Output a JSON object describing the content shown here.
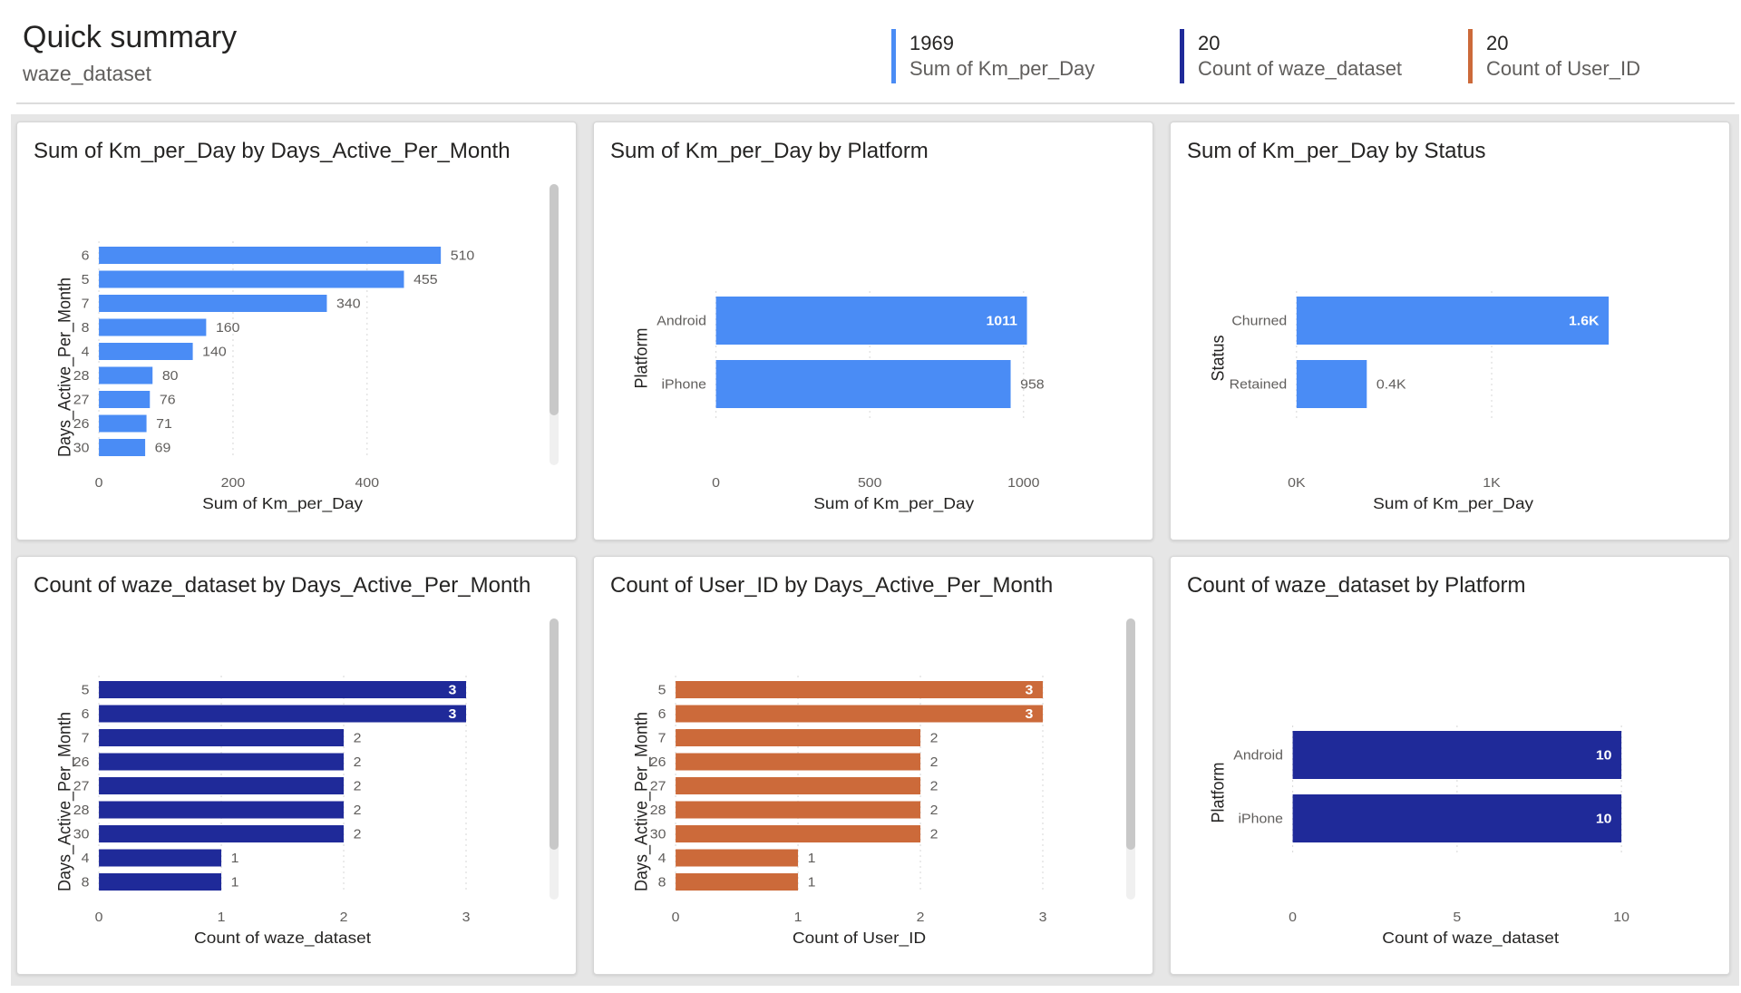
{
  "header": {
    "title": "Quick summary",
    "subtitle": "waze_dataset",
    "kpis": [
      {
        "value": "1969",
        "label": "Sum of Km_per_Day",
        "color": "#4a8cf5"
      },
      {
        "value": "20",
        "label": "Count of waze_dataset",
        "color": "#1f2a99"
      },
      {
        "value": "20",
        "label": "Count of User_ID",
        "color": "#cc6a3a"
      }
    ]
  },
  "colors": {
    "light_blue": "#4a8cf5",
    "dark_blue": "#1f2a99",
    "orange": "#cc6a3a"
  },
  "chart_data": [
    {
      "type": "bar",
      "orientation": "horizontal",
      "title": "Sum of Km_per_Day by Days_Active_Per_Month",
      "ylabel": "Days_Active_Per_Month",
      "xlabel": "Sum of Km_per_Day",
      "categories": [
        "6",
        "5",
        "7",
        "8",
        "4",
        "28",
        "27",
        "26",
        "30"
      ],
      "values": [
        510,
        455,
        340,
        160,
        140,
        80,
        76,
        71,
        69
      ],
      "data_labels": [
        "510",
        "455",
        "340",
        "160",
        "140",
        "80",
        "76",
        "71",
        "69"
      ],
      "xlim": [
        0,
        560
      ],
      "xticks": [
        0,
        200,
        400
      ],
      "xtick_labels": [
        "0",
        "200",
        "400"
      ],
      "color": "#4a8cf5",
      "label_inside": [],
      "scrollbar": true,
      "grid": true
    },
    {
      "type": "bar",
      "orientation": "horizontal",
      "title": "Sum of Km_per_Day by Platform",
      "ylabel": "Platform",
      "xlabel": "Sum of Km_per_Day",
      "categories": [
        "Android",
        "iPhone"
      ],
      "values": [
        1011,
        958
      ],
      "data_labels": [
        "1011",
        "958"
      ],
      "xlim": [
        0,
        1000
      ],
      "xticks": [
        0,
        500,
        1000
      ],
      "xtick_labels": [
        "0",
        "500",
        "1000"
      ],
      "color": "#4a8cf5",
      "label_inside": [
        true,
        false
      ],
      "scrollbar": false,
      "grid": true
    },
    {
      "type": "bar",
      "orientation": "horizontal",
      "title": "Sum of Km_per_Day by Status",
      "ylabel": "Status",
      "xlabel": "Sum of Km_per_Day",
      "categories": [
        "Churned",
        "Retained"
      ],
      "values": [
        1600,
        360
      ],
      "data_labels": [
        "1.6K",
        "0.4K"
      ],
      "xlim": [
        0,
        1600
      ],
      "xticks": [
        0,
        1000
      ],
      "xtick_labels": [
        "0K",
        "1K"
      ],
      "color": "#4a8cf5",
      "label_inside": [
        true,
        false
      ],
      "scrollbar": false,
      "grid": true
    },
    {
      "type": "bar",
      "orientation": "horizontal",
      "title": "Count of waze_dataset by Days_Active_Per_Month",
      "ylabel": "Days_Active_Per_Month",
      "xlabel": "Count of waze_dataset",
      "categories": [
        "5",
        "6",
        "7",
        "26",
        "27",
        "28",
        "30",
        "4",
        "8"
      ],
      "values": [
        3,
        3,
        2,
        2,
        2,
        2,
        2,
        1,
        1
      ],
      "data_labels": [
        "3",
        "3",
        "2",
        "2",
        "2",
        "2",
        "2",
        "1",
        "1"
      ],
      "xlim": [
        0,
        3
      ],
      "xticks": [
        0,
        1,
        2,
        3
      ],
      "xtick_labels": [
        "0",
        "1",
        "2",
        "3"
      ],
      "color": "#1f2a99",
      "label_inside": [
        true,
        true
      ],
      "scrollbar": true,
      "grid": true
    },
    {
      "type": "bar",
      "orientation": "horizontal",
      "title": "Count of User_ID by Days_Active_Per_Month",
      "ylabel": "Days_Active_Per_Month",
      "xlabel": "Count of User_ID",
      "categories": [
        "5",
        "6",
        "7",
        "26",
        "27",
        "28",
        "30",
        "4",
        "8"
      ],
      "values": [
        3,
        3,
        2,
        2,
        2,
        2,
        2,
        1,
        1
      ],
      "data_labels": [
        "3",
        "3",
        "2",
        "2",
        "2",
        "2",
        "2",
        "1",
        "1"
      ],
      "xlim": [
        0,
        3
      ],
      "xticks": [
        0,
        1,
        2,
        3
      ],
      "xtick_labels": [
        "0",
        "1",
        "2",
        "3"
      ],
      "color": "#cc6a3a",
      "label_inside": [
        true,
        true
      ],
      "scrollbar": true,
      "grid": true
    },
    {
      "type": "bar",
      "orientation": "horizontal",
      "title": "Count of waze_dataset by Platform",
      "ylabel": "Platform",
      "xlabel": "Count of waze_dataset",
      "categories": [
        "Android",
        "iPhone"
      ],
      "values": [
        10,
        10
      ],
      "data_labels": [
        "10",
        "10"
      ],
      "xlim": [
        0,
        10
      ],
      "xticks": [
        0,
        5,
        10
      ],
      "xtick_labels": [
        "0",
        "5",
        "10"
      ],
      "color": "#1f2a99",
      "label_inside": [
        true,
        true
      ],
      "scrollbar": false,
      "grid": true
    }
  ]
}
